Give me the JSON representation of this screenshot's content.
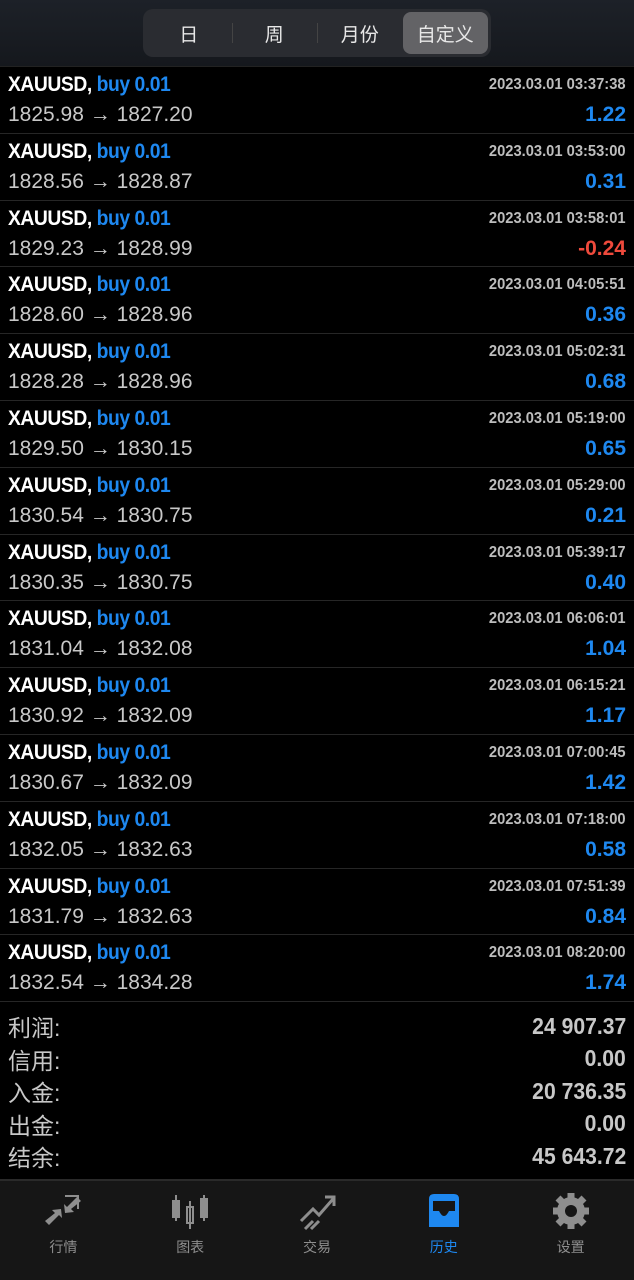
{
  "period_tabs": [
    "日",
    "周",
    "月份",
    "自定义"
  ],
  "active_period": "自定义",
  "colors": {
    "accent": "#1e88f0",
    "negative": "#ef4a3c"
  },
  "arrow": "→",
  "trades": [
    {
      "symbol": "XAUUSD,",
      "type": "buy 0.01",
      "time": "2023.03.01 03:37:38",
      "open": "1825.98",
      "close": "1827.20",
      "profit": "1.22"
    },
    {
      "symbol": "XAUUSD,",
      "type": "buy 0.01",
      "time": "2023.03.01 03:53:00",
      "open": "1828.56",
      "close": "1828.87",
      "profit": "0.31"
    },
    {
      "symbol": "XAUUSD,",
      "type": "buy 0.01",
      "time": "2023.03.01 03:58:01",
      "open": "1829.23",
      "close": "1828.99",
      "profit": "-0.24"
    },
    {
      "symbol": "XAUUSD,",
      "type": "buy 0.01",
      "time": "2023.03.01 04:05:51",
      "open": "1828.60",
      "close": "1828.96",
      "profit": "0.36"
    },
    {
      "symbol": "XAUUSD,",
      "type": "buy 0.01",
      "time": "2023.03.01 05:02:31",
      "open": "1828.28",
      "close": "1828.96",
      "profit": "0.68"
    },
    {
      "symbol": "XAUUSD,",
      "type": "buy 0.01",
      "time": "2023.03.01 05:19:00",
      "open": "1829.50",
      "close": "1830.15",
      "profit": "0.65"
    },
    {
      "symbol": "XAUUSD,",
      "type": "buy 0.01",
      "time": "2023.03.01 05:29:00",
      "open": "1830.54",
      "close": "1830.75",
      "profit": "0.21"
    },
    {
      "symbol": "XAUUSD,",
      "type": "buy 0.01",
      "time": "2023.03.01 05:39:17",
      "open": "1830.35",
      "close": "1830.75",
      "profit": "0.40"
    },
    {
      "symbol": "XAUUSD,",
      "type": "buy 0.01",
      "time": "2023.03.01 06:06:01",
      "open": "1831.04",
      "close": "1832.08",
      "profit": "1.04"
    },
    {
      "symbol": "XAUUSD,",
      "type": "buy 0.01",
      "time": "2023.03.01 06:15:21",
      "open": "1830.92",
      "close": "1832.09",
      "profit": "1.17"
    },
    {
      "symbol": "XAUUSD,",
      "type": "buy 0.01",
      "time": "2023.03.01 07:00:45",
      "open": "1830.67",
      "close": "1832.09",
      "profit": "1.42"
    },
    {
      "symbol": "XAUUSD,",
      "type": "buy 0.01",
      "time": "2023.03.01 07:18:00",
      "open": "1832.05",
      "close": "1832.63",
      "profit": "0.58"
    },
    {
      "symbol": "XAUUSD,",
      "type": "buy 0.01",
      "time": "2023.03.01 07:51:39",
      "open": "1831.79",
      "close": "1832.63",
      "profit": "0.84"
    },
    {
      "symbol": "XAUUSD,",
      "type": "buy 0.01",
      "time": "2023.03.01 08:20:00",
      "open": "1832.54",
      "close": "1834.28",
      "profit": "1.74"
    }
  ],
  "summary": [
    {
      "label": "利润:",
      "value": "24 907.37"
    },
    {
      "label": "信用:",
      "value": "0.00"
    },
    {
      "label": "入金:",
      "value": "20 736.35"
    },
    {
      "label": "出金:",
      "value": "0.00"
    },
    {
      "label": "结余:",
      "value": "45 643.72"
    }
  ],
  "tabbar": [
    {
      "label": "行情",
      "icon": "quotes-arrows-icon"
    },
    {
      "label": "图表",
      "icon": "candlestick-chart-icon"
    },
    {
      "label": "交易",
      "icon": "trade-trend-icon"
    },
    {
      "label": "历史",
      "icon": "history-inbox-icon",
      "active": true
    },
    {
      "label": "设置",
      "icon": "settings-gear-icon"
    }
  ]
}
